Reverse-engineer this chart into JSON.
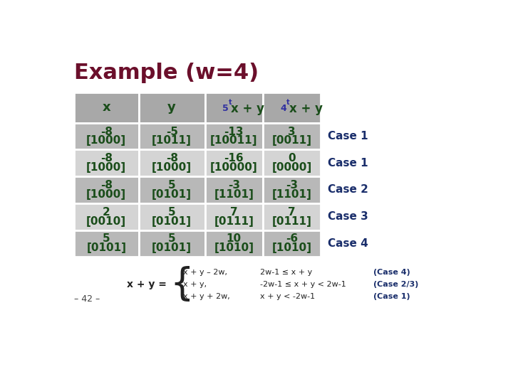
{
  "title": "Example (w=4)",
  "title_color": "#6B0F2B",
  "title_fontsize": 22,
  "bg_color": "#FFFFFF",
  "header_bg": "#A8A8A8",
  "row_bg_dark": "#B8B8B8",
  "row_bg_light": "#D4D4D4",
  "cell_text_color": "#1A4D1A",
  "case_text_color": "#1A2E6B",
  "header_text_color": "#1A2E6B",
  "rows": [
    [
      "-8",
      "[1000]",
      "-5",
      "[1011]",
      "-13",
      "[10011]",
      "3",
      "[0011]",
      "Case 1"
    ],
    [
      "-8",
      "[1000]",
      "-8",
      "[1000]",
      "-16",
      "[10000]",
      "0",
      "[0000]",
      "Case 1"
    ],
    [
      "-8",
      "[1000]",
      "5",
      "[0101]",
      "-3",
      "[1101]",
      "-3",
      "[1101]",
      "Case 2"
    ],
    [
      "2",
      "[0010]",
      "5",
      "[0101]",
      "7",
      "[0111]",
      "7",
      "[0111]",
      "Case 3"
    ],
    [
      "5",
      "[0101]",
      "5",
      "[0101]",
      "10",
      "[1010]",
      "-6",
      "[1010]",
      "Case 4"
    ]
  ]
}
